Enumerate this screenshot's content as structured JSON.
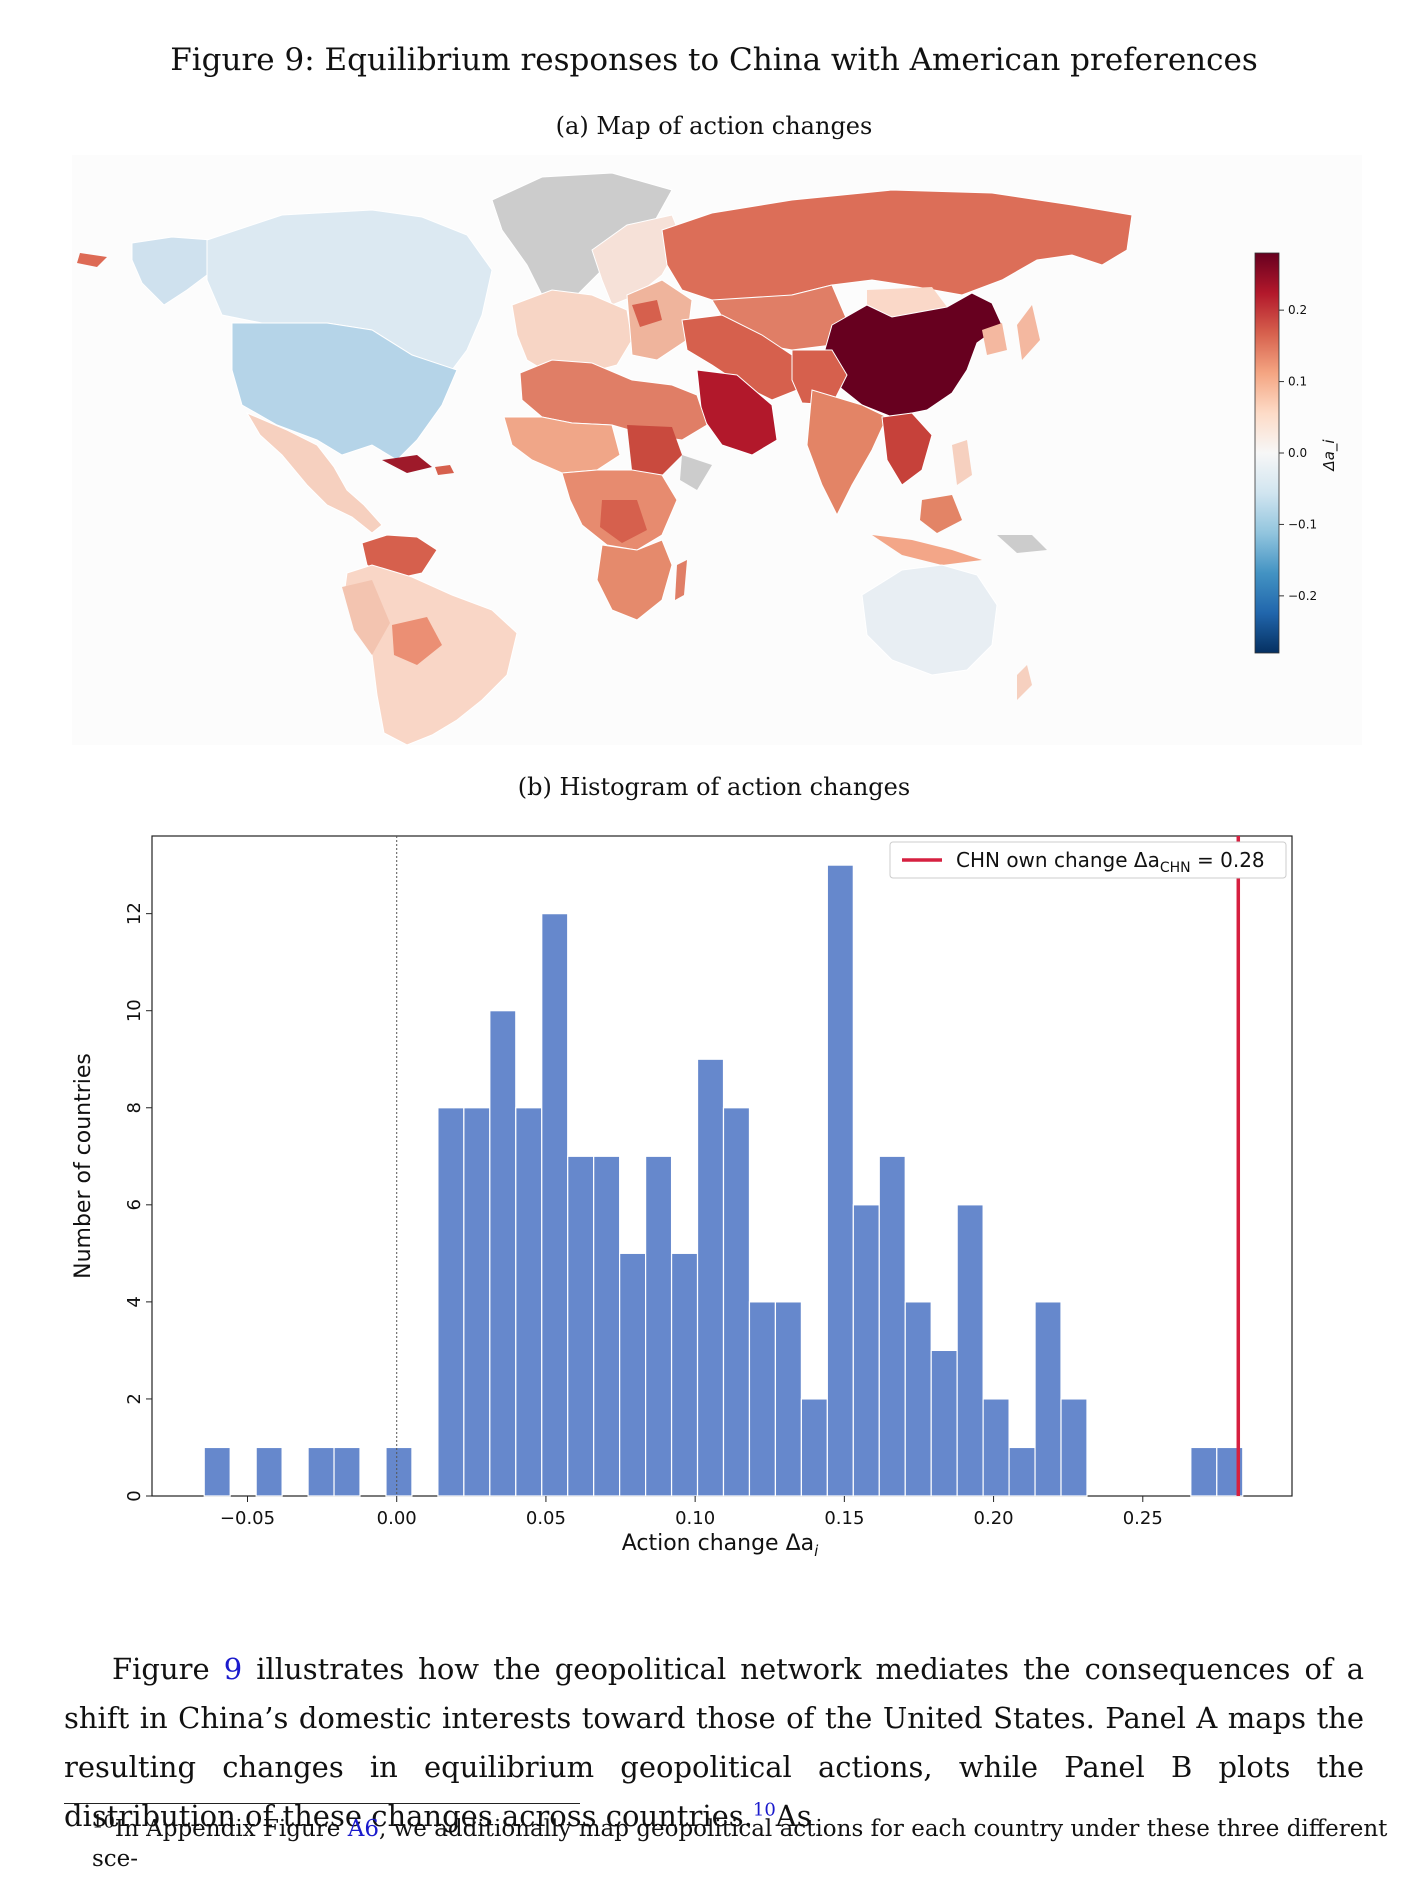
{
  "figure": {
    "title": "Figure 9: Equilibrium responses to China with American preferences",
    "panel_a_title": "(a) Map of action changes",
    "panel_b_title": "(b) Histogram of action changes"
  },
  "map": {
    "colorbar_label": "Δa_i",
    "colorbar_ticks": [
      "0.2",
      "0.1",
      "0.0",
      "−0.1",
      "−0.2"
    ],
    "colorbar_range": [
      -0.28,
      0.28
    ],
    "colormap": [
      "#053061",
      "#2166ac",
      "#4393c3",
      "#92c5de",
      "#d1e5f0",
      "#f7f7f7",
      "#fddbc7",
      "#f4a582",
      "#d6604d",
      "#b2182b",
      "#67001f"
    ],
    "no_data_color": "#cccccc"
  },
  "chart_data": {
    "type": "bar",
    "xlabel": "Action change Δa",
    "xlabel_sub": "i",
    "ylabel": "Number of countries",
    "xlim": [
      -0.082,
      0.3
    ],
    "ylim": [
      0,
      13.6
    ],
    "xticks": [
      -0.05,
      0.0,
      0.05,
      0.1,
      0.15,
      0.2,
      0.25
    ],
    "xtick_labels": [
      "−0.05",
      "0.00",
      "0.05",
      "0.10",
      "0.15",
      "0.20",
      "0.25"
    ],
    "yticks": [
      0,
      2,
      4,
      6,
      8,
      10,
      12
    ],
    "ytick_labels": [
      "0",
      "2",
      "4",
      "6",
      "8",
      "10",
      "12"
    ],
    "bin_width": 0.0087,
    "bin_starts": [
      -0.0645,
      -0.0471,
      -0.0297,
      -0.021,
      -0.0036,
      0.0138,
      0.0225,
      0.0312,
      0.0399,
      0.0486,
      0.0573,
      0.066,
      0.0747,
      0.0834,
      0.0921,
      0.1008,
      0.1095,
      0.1182,
      0.1269,
      0.1356,
      0.1443,
      0.153,
      0.1617,
      0.1704,
      0.1791,
      0.1878,
      0.1965,
      0.2052,
      0.2139,
      0.2226,
      0.2661,
      0.2748
    ],
    "counts": [
      1,
      1,
      1,
      1,
      1,
      8,
      8,
      10,
      8,
      12,
      7,
      7,
      5,
      7,
      5,
      9,
      8,
      4,
      4,
      2,
      13,
      6,
      7,
      4,
      3,
      6,
      2,
      1,
      4,
      2,
      1,
      1
    ],
    "bar_color": "#6688cc",
    "zero_line": 0.0,
    "reference_line": {
      "x": 0.282,
      "color": "#d62040"
    },
    "legend": {
      "label": "CHN own change Δa",
      "label_sub": "CHN",
      "label_suffix": " = 0.28",
      "placement": "top-right"
    }
  },
  "body": {
    "p1": "Figure ",
    "ref1": "9",
    "p2": " illustrates how the geopolitical network mediates the consequences of a shift in China’s domestic interests toward those of the United States. Panel A maps the resulting changes in equilibrium geopolitical actions, while Panel B plots the distribution of these changes across countries.",
    "fn_mark": "10",
    "p3": "As"
  },
  "footnote": {
    "mark": "10",
    "text1": "In Appendix Figure ",
    "ref": "A6",
    "text2": ", we additionally map geopolitical actions for each country under these three different sce-"
  }
}
